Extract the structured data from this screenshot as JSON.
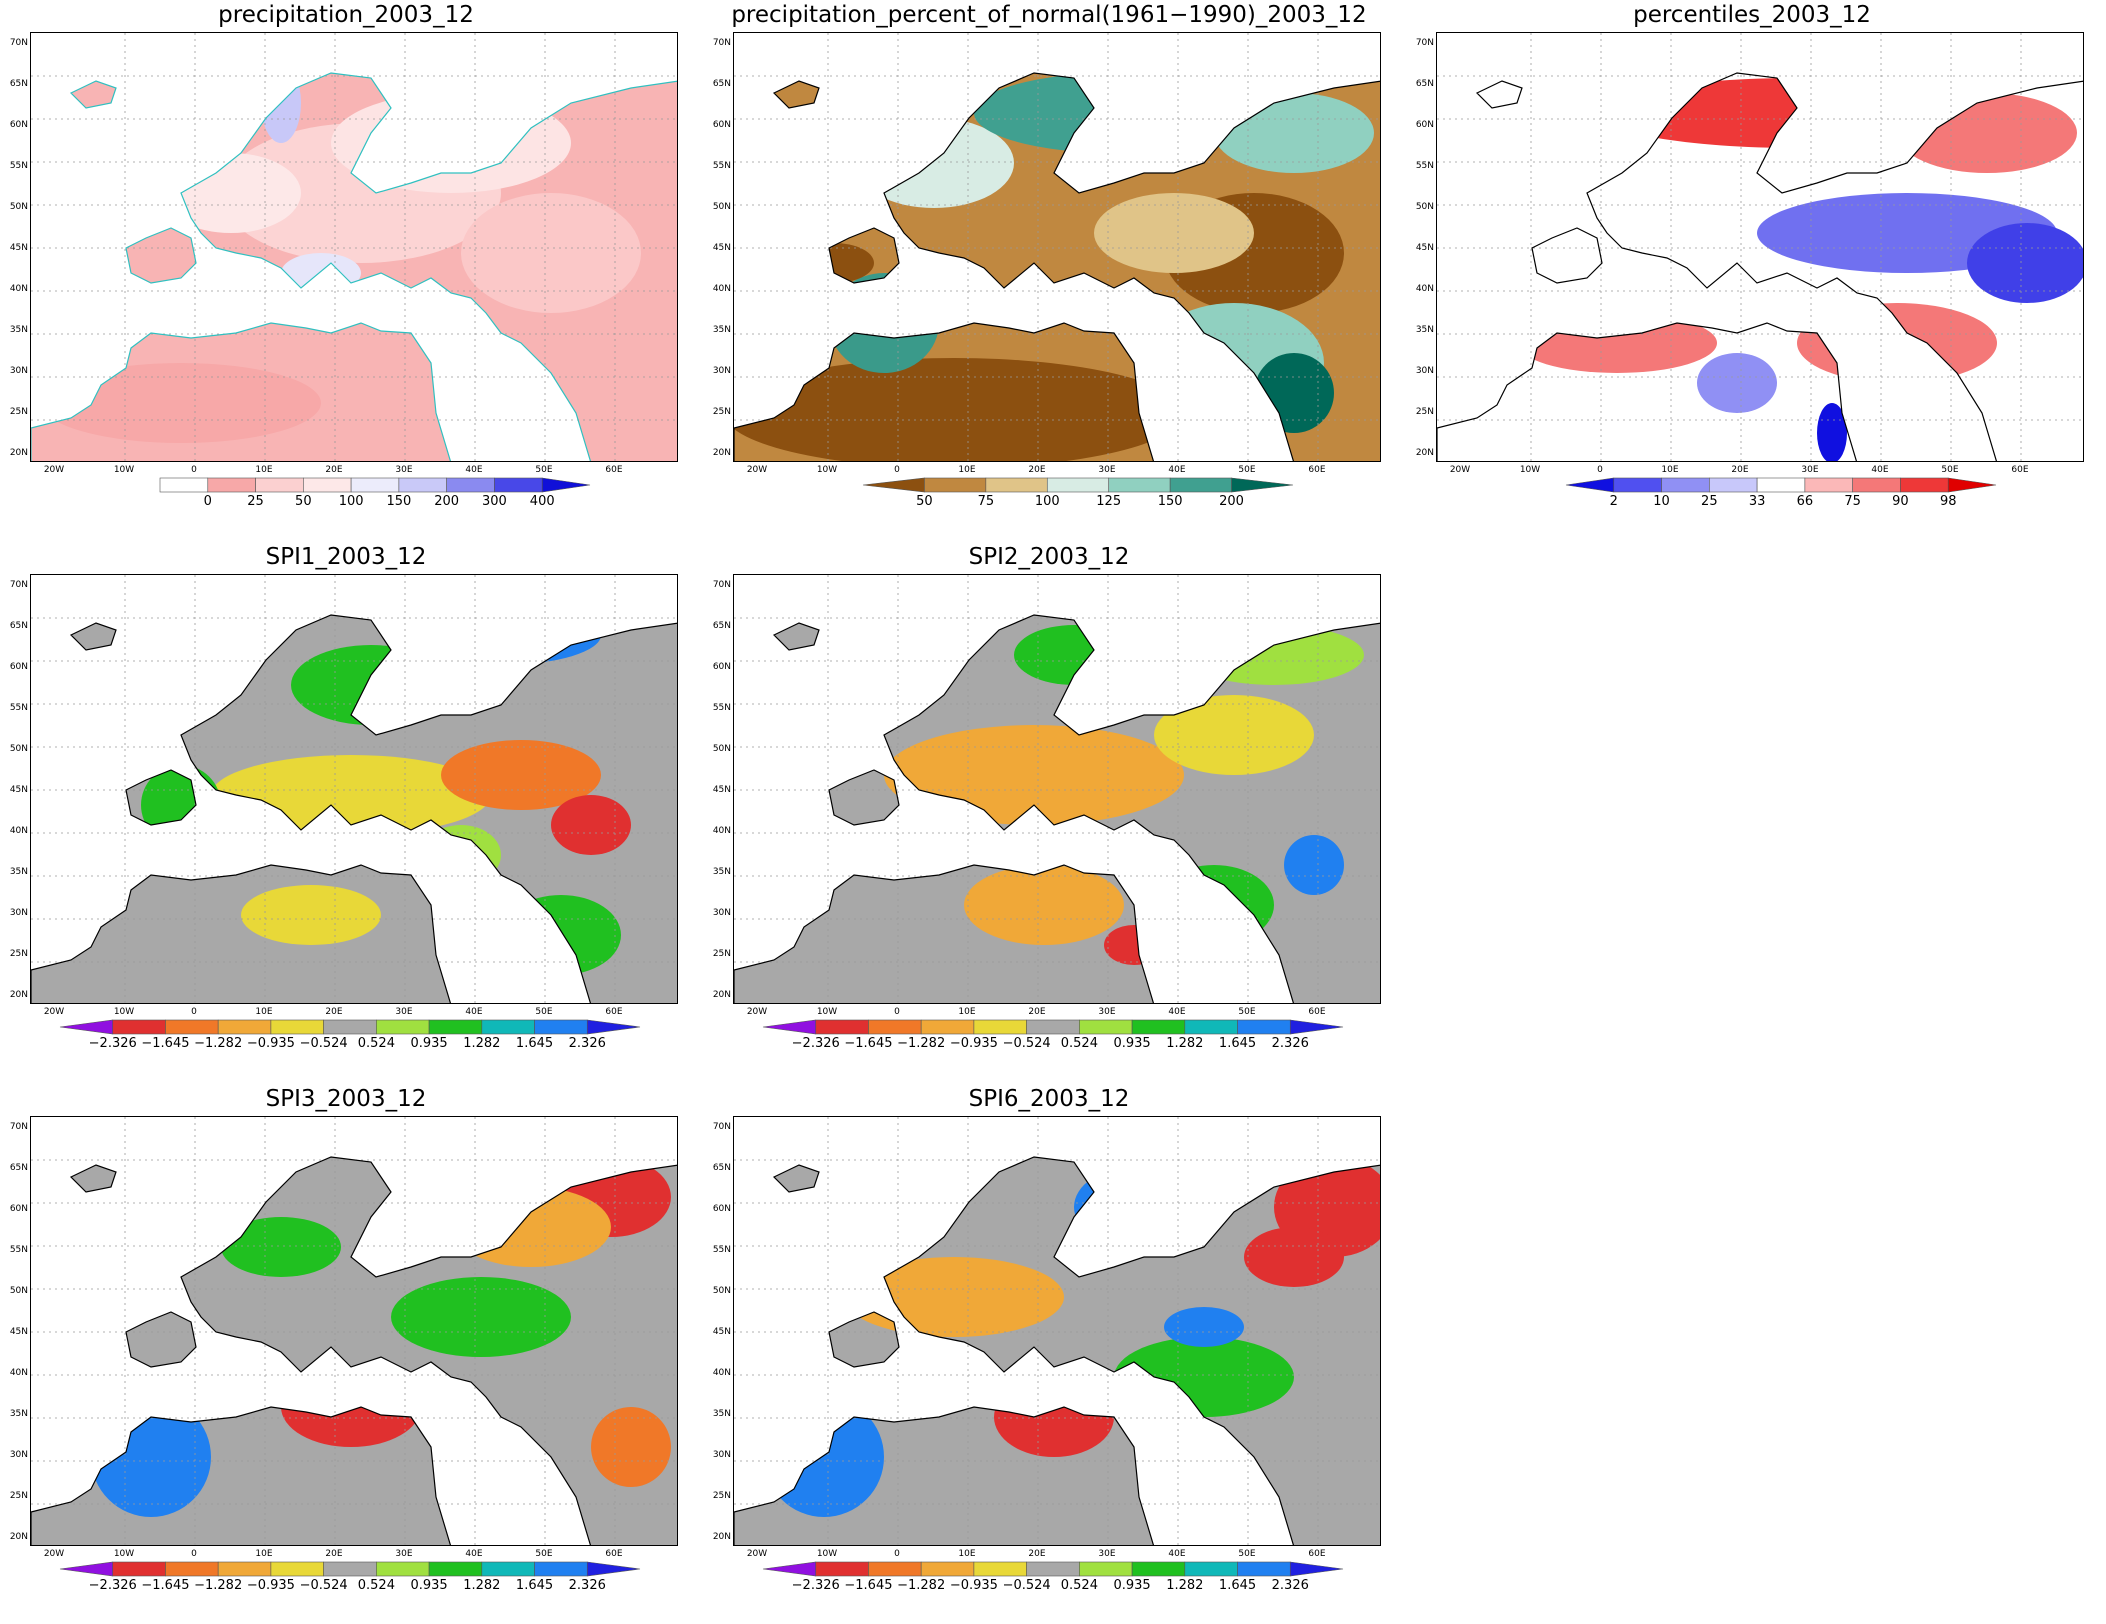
{
  "panels": [
    {
      "id": "precip",
      "title": "precipitation_2003_12",
      "legend": {
        "labels": [
          "0",
          "25",
          "50",
          "100",
          "150",
          "200",
          "300",
          "400"
        ],
        "colors": [
          "#ffffff",
          "#f7a8a8",
          "#fbd0d0",
          "#fde8e8",
          "#ececfb",
          "#c9c9f8",
          "#8a8af0",
          "#4848e8",
          "#1010d8"
        ]
      }
    },
    {
      "id": "pctnormal",
      "title": "precipitation_percent_of_normal(1961−1990)_2003_12",
      "legend": {
        "labels": [
          "50",
          "75",
          "100",
          "125",
          "150",
          "200"
        ],
        "colors": [
          "#8c5010",
          "#c08840",
          "#e0c488",
          "#d8ece4",
          "#90d0c0",
          "#40a090",
          "#006858"
        ]
      }
    },
    {
      "id": "percentiles",
      "title": "percentiles_2003_12",
      "legend": {
        "labels": [
          "2",
          "10",
          "25",
          "33",
          "66",
          "75",
          "90",
          "98"
        ],
        "colors": [
          "#1010e0",
          "#5050f0",
          "#9090f4",
          "#c8c8fa",
          "#ffffff",
          "#fbb8b8",
          "#f47878",
          "#ee3838",
          "#e00000"
        ]
      }
    },
    {
      "id": "spi1",
      "title": "SPI1_2003_12"
    },
    {
      "id": "spi2",
      "title": "SPI2_2003_12"
    },
    {
      "id": "spi3",
      "title": "SPI3_2003_12"
    },
    {
      "id": "spi6",
      "title": "SPI6_2003_12"
    }
  ],
  "spi_legend": {
    "labels": [
      "−2.326",
      "−1.645",
      "−1.282",
      "−0.935",
      "−0.524",
      "0.524",
      "0.935",
      "1.282",
      "1.645",
      "2.326"
    ],
    "colors": [
      "#9010e0",
      "#e03030",
      "#f07828",
      "#f0a838",
      "#e8d838",
      "#a8a8a8",
      "#a0e040",
      "#20c020",
      "#10b8b8",
      "#2080f0",
      "#2020e0"
    ]
  },
  "axes": {
    "lat_labels": [
      "70N",
      "65N",
      "60N",
      "55N",
      "50N",
      "45N",
      "40N",
      "35N",
      "30N",
      "25N",
      "20N"
    ],
    "lon_labels": [
      "20W",
      "10W",
      "0",
      "10E",
      "20E",
      "30E",
      "40E",
      "50E",
      "60E"
    ]
  }
}
